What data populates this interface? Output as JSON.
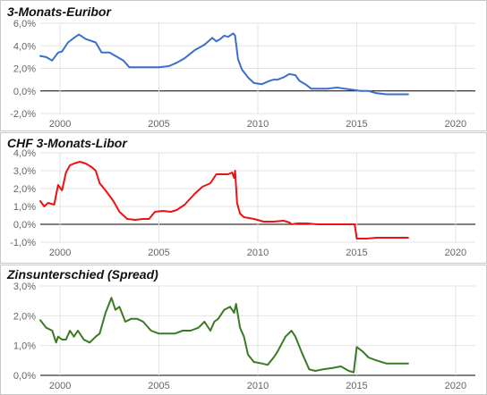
{
  "chart_data": [
    {
      "type": "line",
      "title": "3-Monats-Euribor",
      "xlabel": "",
      "ylabel": "",
      "xlim": [
        1999.0,
        2021.0
      ],
      "ylim": [
        -2.0,
        6.0
      ],
      "y_ticks": [
        -2,
        0,
        2,
        4,
        6
      ],
      "y_tick_labels": [
        "-2,0%",
        "0,0%",
        "2,0%",
        "4,0%",
        "6,0%"
      ],
      "x_ticks": [
        2000,
        2005,
        2010,
        2015,
        2020
      ],
      "x_tick_labels": [
        "2000",
        "2005",
        "2010",
        "2015",
        "2020"
      ],
      "grid": true,
      "series": [
        {
          "color": "#3a6fcc",
          "x": [
            1999.0,
            1999.3,
            1999.6,
            1999.9,
            2000.1,
            2000.4,
            2000.7,
            2000.95,
            2001.3,
            2001.8,
            2002.1,
            2002.5,
            2002.9,
            2003.2,
            2003.5,
            2004.0,
            2004.5,
            2005.0,
            2005.5,
            2005.9,
            2006.3,
            2006.8,
            2007.3,
            2007.7,
            2007.9,
            2008.1,
            2008.3,
            2008.5,
            2008.75,
            2008.85,
            2009.0,
            2009.2,
            2009.5,
            2009.8,
            2010.2,
            2010.6,
            2010.8,
            2011.0,
            2011.3,
            2011.6,
            2011.9,
            2012.1,
            2012.4,
            2012.7,
            2013.0,
            2013.5,
            2014.0,
            2014.4,
            2014.8,
            2015.2,
            2015.6,
            2016.0,
            2016.5,
            2017.0,
            2017.6
          ],
          "values": [
            3.1,
            3.0,
            2.7,
            3.4,
            3.5,
            4.3,
            4.7,
            5.0,
            4.6,
            4.3,
            3.4,
            3.4,
            3.0,
            2.7,
            2.1,
            2.1,
            2.1,
            2.1,
            2.2,
            2.5,
            2.9,
            3.6,
            4.1,
            4.7,
            4.4,
            4.6,
            4.9,
            4.8,
            5.1,
            4.9,
            2.8,
            1.9,
            1.2,
            0.7,
            0.6,
            0.9,
            1.0,
            1.0,
            1.2,
            1.5,
            1.4,
            0.9,
            0.6,
            0.2,
            0.2,
            0.2,
            0.3,
            0.2,
            0.1,
            0.0,
            0.0,
            -0.2,
            -0.3,
            -0.3,
            -0.3
          ]
        }
      ]
    },
    {
      "type": "line",
      "title": "CHF 3-Monats-Libor",
      "xlabel": "",
      "ylabel": "",
      "xlim": [
        1999.0,
        2021.0
      ],
      "ylim": [
        -1.0,
        4.0
      ],
      "y_ticks": [
        -1,
        0,
        1,
        2,
        3,
        4
      ],
      "y_tick_labels": [
        "-1,0%",
        "0,0%",
        "1,0%",
        "2,0%",
        "3,0%",
        "4,0%"
      ],
      "x_ticks": [
        2000,
        2005,
        2010,
        2015,
        2020
      ],
      "x_tick_labels": [
        "2000",
        "2005",
        "2010",
        "2015",
        "2020"
      ],
      "grid": true,
      "series": [
        {
          "color": "#ee1111",
          "x": [
            1999.0,
            1999.2,
            1999.4,
            1999.7,
            1999.9,
            2000.1,
            2000.3,
            2000.5,
            2000.7,
            2001.0,
            2001.3,
            2001.6,
            2001.8,
            2002.0,
            2002.3,
            2002.7,
            2003.0,
            2003.4,
            2003.8,
            2004.2,
            2004.5,
            2004.8,
            2005.2,
            2005.6,
            2005.9,
            2006.3,
            2006.8,
            2007.2,
            2007.6,
            2007.9,
            2008.2,
            2008.5,
            2008.7,
            2008.8,
            2008.85,
            2008.95,
            2009.1,
            2009.3,
            2009.8,
            2010.3,
            2010.8,
            2011.3,
            2011.6,
            2011.7,
            2012.0,
            2012.5,
            2013.0,
            2013.5,
            2014.0,
            2014.5,
            2014.9,
            2015.0,
            2015.1,
            2015.5,
            2016.0,
            2016.5,
            2017.0,
            2017.6
          ],
          "values": [
            1.3,
            1.0,
            1.2,
            1.1,
            2.2,
            1.9,
            2.9,
            3.3,
            3.4,
            3.5,
            3.4,
            3.2,
            3.0,
            2.3,
            1.9,
            1.3,
            0.7,
            0.3,
            0.25,
            0.3,
            0.3,
            0.7,
            0.75,
            0.7,
            0.8,
            1.1,
            1.7,
            2.1,
            2.3,
            2.8,
            2.8,
            2.8,
            2.9,
            2.6,
            3.0,
            1.2,
            0.6,
            0.4,
            0.3,
            0.15,
            0.15,
            0.2,
            0.1,
            0.0,
            0.05,
            0.05,
            0.0,
            0.0,
            0.0,
            0.0,
            0.0,
            -0.8,
            -0.8,
            -0.8,
            -0.75,
            -0.75,
            -0.75,
            -0.75
          ]
        }
      ]
    },
    {
      "type": "line",
      "title": "Zinsunterschied (Spread)",
      "xlabel": "",
      "ylabel": "",
      "xlim": [
        1999.0,
        2021.0
      ],
      "ylim": [
        0.0,
        3.0
      ],
      "y_ticks": [
        0,
        1,
        2,
        3
      ],
      "y_tick_labels": [
        "0,0%",
        "1,0%",
        "2,0%",
        "3,0%"
      ],
      "x_ticks": [
        2000,
        2005,
        2010,
        2015,
        2020
      ],
      "x_tick_labels": [
        "2000",
        "2005",
        "2010",
        "2015",
        "2020"
      ],
      "grid": true,
      "series": [
        {
          "color": "#3a7a22",
          "x": [
            1999.0,
            1999.3,
            1999.6,
            1999.8,
            1999.9,
            2000.1,
            2000.3,
            2000.5,
            2000.7,
            2000.9,
            2001.2,
            2001.5,
            2001.8,
            2002.0,
            2002.3,
            2002.6,
            2002.8,
            2003.0,
            2003.3,
            2003.6,
            2003.9,
            2004.2,
            2004.6,
            2005.0,
            2005.4,
            2005.8,
            2006.2,
            2006.6,
            2007.0,
            2007.3,
            2007.6,
            2007.8,
            2008.0,
            2008.3,
            2008.6,
            2008.8,
            2008.9,
            2009.1,
            2009.3,
            2009.5,
            2009.8,
            2010.2,
            2010.5,
            2010.8,
            2011.0,
            2011.4,
            2011.7,
            2011.9,
            2012.2,
            2012.6,
            2012.9,
            2013.3,
            2013.8,
            2014.2,
            2014.6,
            2014.85,
            2015.0,
            2015.3,
            2015.6,
            2016.0,
            2016.5,
            2017.0,
            2017.6
          ],
          "values": [
            1.85,
            1.6,
            1.5,
            1.1,
            1.3,
            1.2,
            1.2,
            1.5,
            1.3,
            1.5,
            1.2,
            1.1,
            1.3,
            1.4,
            2.1,
            2.6,
            2.2,
            2.3,
            1.8,
            1.9,
            1.9,
            1.8,
            1.5,
            1.4,
            1.4,
            1.4,
            1.5,
            1.5,
            1.6,
            1.8,
            1.5,
            1.8,
            1.9,
            2.2,
            2.3,
            2.1,
            2.4,
            1.6,
            1.3,
            0.7,
            0.45,
            0.4,
            0.35,
            0.6,
            0.8,
            1.3,
            1.5,
            1.3,
            0.8,
            0.2,
            0.15,
            0.2,
            0.25,
            0.3,
            0.15,
            0.1,
            0.95,
            0.8,
            0.6,
            0.5,
            0.4,
            0.4,
            0.4
          ]
        }
      ]
    }
  ]
}
